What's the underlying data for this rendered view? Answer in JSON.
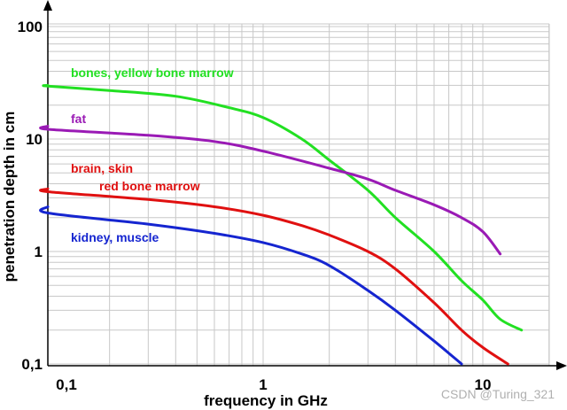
{
  "chart_data": {
    "type": "line",
    "xscale": "log",
    "yscale": "log",
    "xlim": [
      0.05,
      20
    ],
    "ylim": [
      0.1,
      100
    ],
    "xlabel": "frequency in GHz",
    "ylabel": "penetration depth in cm",
    "x_ticks": [
      {
        "value": 0.1,
        "label": "0,1"
      },
      {
        "value": 1,
        "label": "1"
      },
      {
        "value": 10,
        "label": "10"
      }
    ],
    "y_ticks": [
      {
        "value": 0.1,
        "label": "0,1"
      },
      {
        "value": 1,
        "label": "1"
      },
      {
        "value": 10,
        "label": "10"
      },
      {
        "value": 100,
        "label": "100"
      }
    ],
    "grid": true,
    "series": [
      {
        "name": "bones, yellow bone marrow",
        "color": "#22e022",
        "points": [
          [
            0.05,
            30
          ],
          [
            0.1,
            29.5
          ],
          [
            0.2,
            27
          ],
          [
            0.4,
            24
          ],
          [
            0.7,
            19
          ],
          [
            1.0,
            15.5
          ],
          [
            1.5,
            10
          ],
          [
            2.0,
            6.5
          ],
          [
            3.0,
            3.5
          ],
          [
            4.0,
            2.0
          ],
          [
            6.0,
            1.0
          ],
          [
            8.0,
            0.55
          ],
          [
            10.0,
            0.37
          ],
          [
            12.0,
            0.25
          ],
          [
            15.0,
            0.2
          ]
        ]
      },
      {
        "name": "fat",
        "color": "#9a1ab5",
        "points": [
          [
            0.05,
            13
          ],
          [
            0.1,
            12.2
          ],
          [
            0.3,
            10.8
          ],
          [
            0.6,
            9.5
          ],
          [
            1.0,
            7.8
          ],
          [
            2.0,
            5.5
          ],
          [
            3.0,
            4.4
          ],
          [
            4.0,
            3.5
          ],
          [
            6.0,
            2.6
          ],
          [
            8.0,
            2.0
          ],
          [
            10.0,
            1.5
          ],
          [
            12.0,
            0.95
          ]
        ]
      },
      {
        "name": "brain, skin",
        "label2": "red bone marrow",
        "color": "#e01010",
        "points": [
          [
            0.05,
            3.6
          ],
          [
            0.1,
            3.4
          ],
          [
            0.3,
            2.9
          ],
          [
            0.6,
            2.5
          ],
          [
            1.0,
            2.1
          ],
          [
            1.5,
            1.7
          ],
          [
            2.0,
            1.4
          ],
          [
            3.0,
            1.0
          ],
          [
            4.0,
            0.7
          ],
          [
            6.0,
            0.35
          ],
          [
            8.0,
            0.2
          ],
          [
            10.0,
            0.14
          ],
          [
            13.0,
            0.1
          ]
        ]
      },
      {
        "name": "kidney, muscle",
        "color": "#1525d0",
        "points": [
          [
            0.05,
            2.5
          ],
          [
            0.1,
            2.2
          ],
          [
            0.3,
            1.75
          ],
          [
            0.6,
            1.45
          ],
          [
            1.0,
            1.2
          ],
          [
            1.5,
            0.95
          ],
          [
            2.0,
            0.75
          ],
          [
            3.0,
            0.45
          ],
          [
            4.0,
            0.3
          ],
          [
            6.0,
            0.16
          ],
          [
            8.0,
            0.1
          ]
        ]
      }
    ]
  },
  "watermark": "CSDN @Turing_321"
}
